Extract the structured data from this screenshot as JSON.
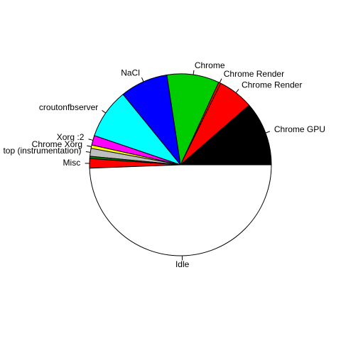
{
  "chart_data": {
    "type": "pie",
    "categories": [
      "Chrome GPU",
      "Chrome Render",
      "Chrome Render",
      "Chrome",
      "NaCl",
      "croutonfbserver",
      "Xorg :2",
      "Chrome Xorg",
      "top (instrumentation)",
      null,
      "Misc",
      "Idle"
    ],
    "values": [
      11.4,
      6.3,
      0.4,
      9.3,
      8.5,
      8.9,
      1.7,
      0.6,
      1.4,
      0.4,
      1.7,
      49.4
    ],
    "colors": [
      "#000000",
      "#ff0000",
      "#ff0000",
      "#00cd00",
      "#0000ff",
      "#00ffff",
      "#ff00ff",
      "#ffff00",
      "#bebebe",
      "#008000",
      "#ff0000",
      "#ffffff"
    ]
  }
}
